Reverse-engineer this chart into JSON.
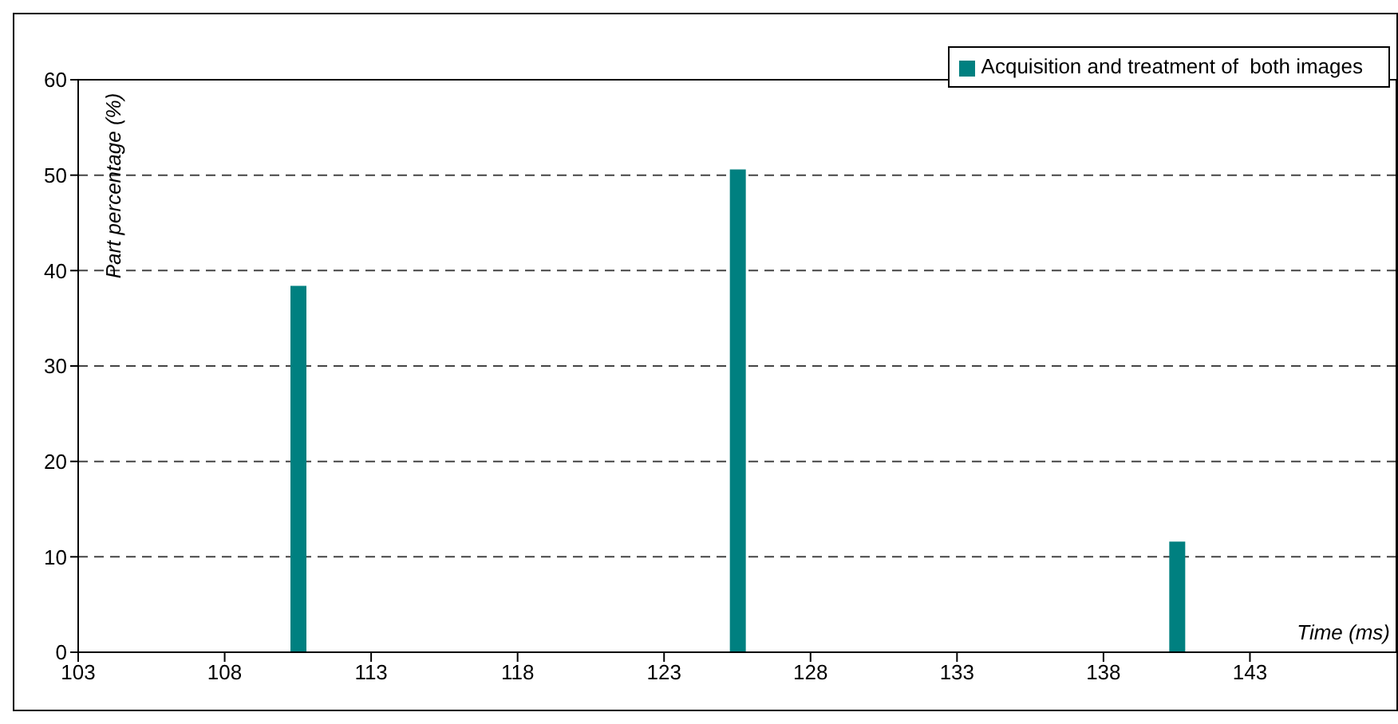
{
  "chart_data": {
    "type": "bar",
    "xlabel": "Time (ms)",
    "ylabel": "Part percentage (%)",
    "x": [
      110.5,
      125.5,
      140.5
    ],
    "series": [
      {
        "name": "Acquisition and treatment of  both images",
        "color": "#008080",
        "values": [
          38.4,
          50.6,
          11.6
        ]
      }
    ],
    "xlim": [
      103,
      148
    ],
    "xticks": [
      103,
      108,
      113,
      118,
      123,
      128,
      133,
      138,
      143
    ],
    "ylim": [
      0,
      60
    ],
    "yticks": [
      0,
      10,
      20,
      30,
      40,
      50,
      60
    ],
    "grid": "y",
    "legend": "top right"
  }
}
